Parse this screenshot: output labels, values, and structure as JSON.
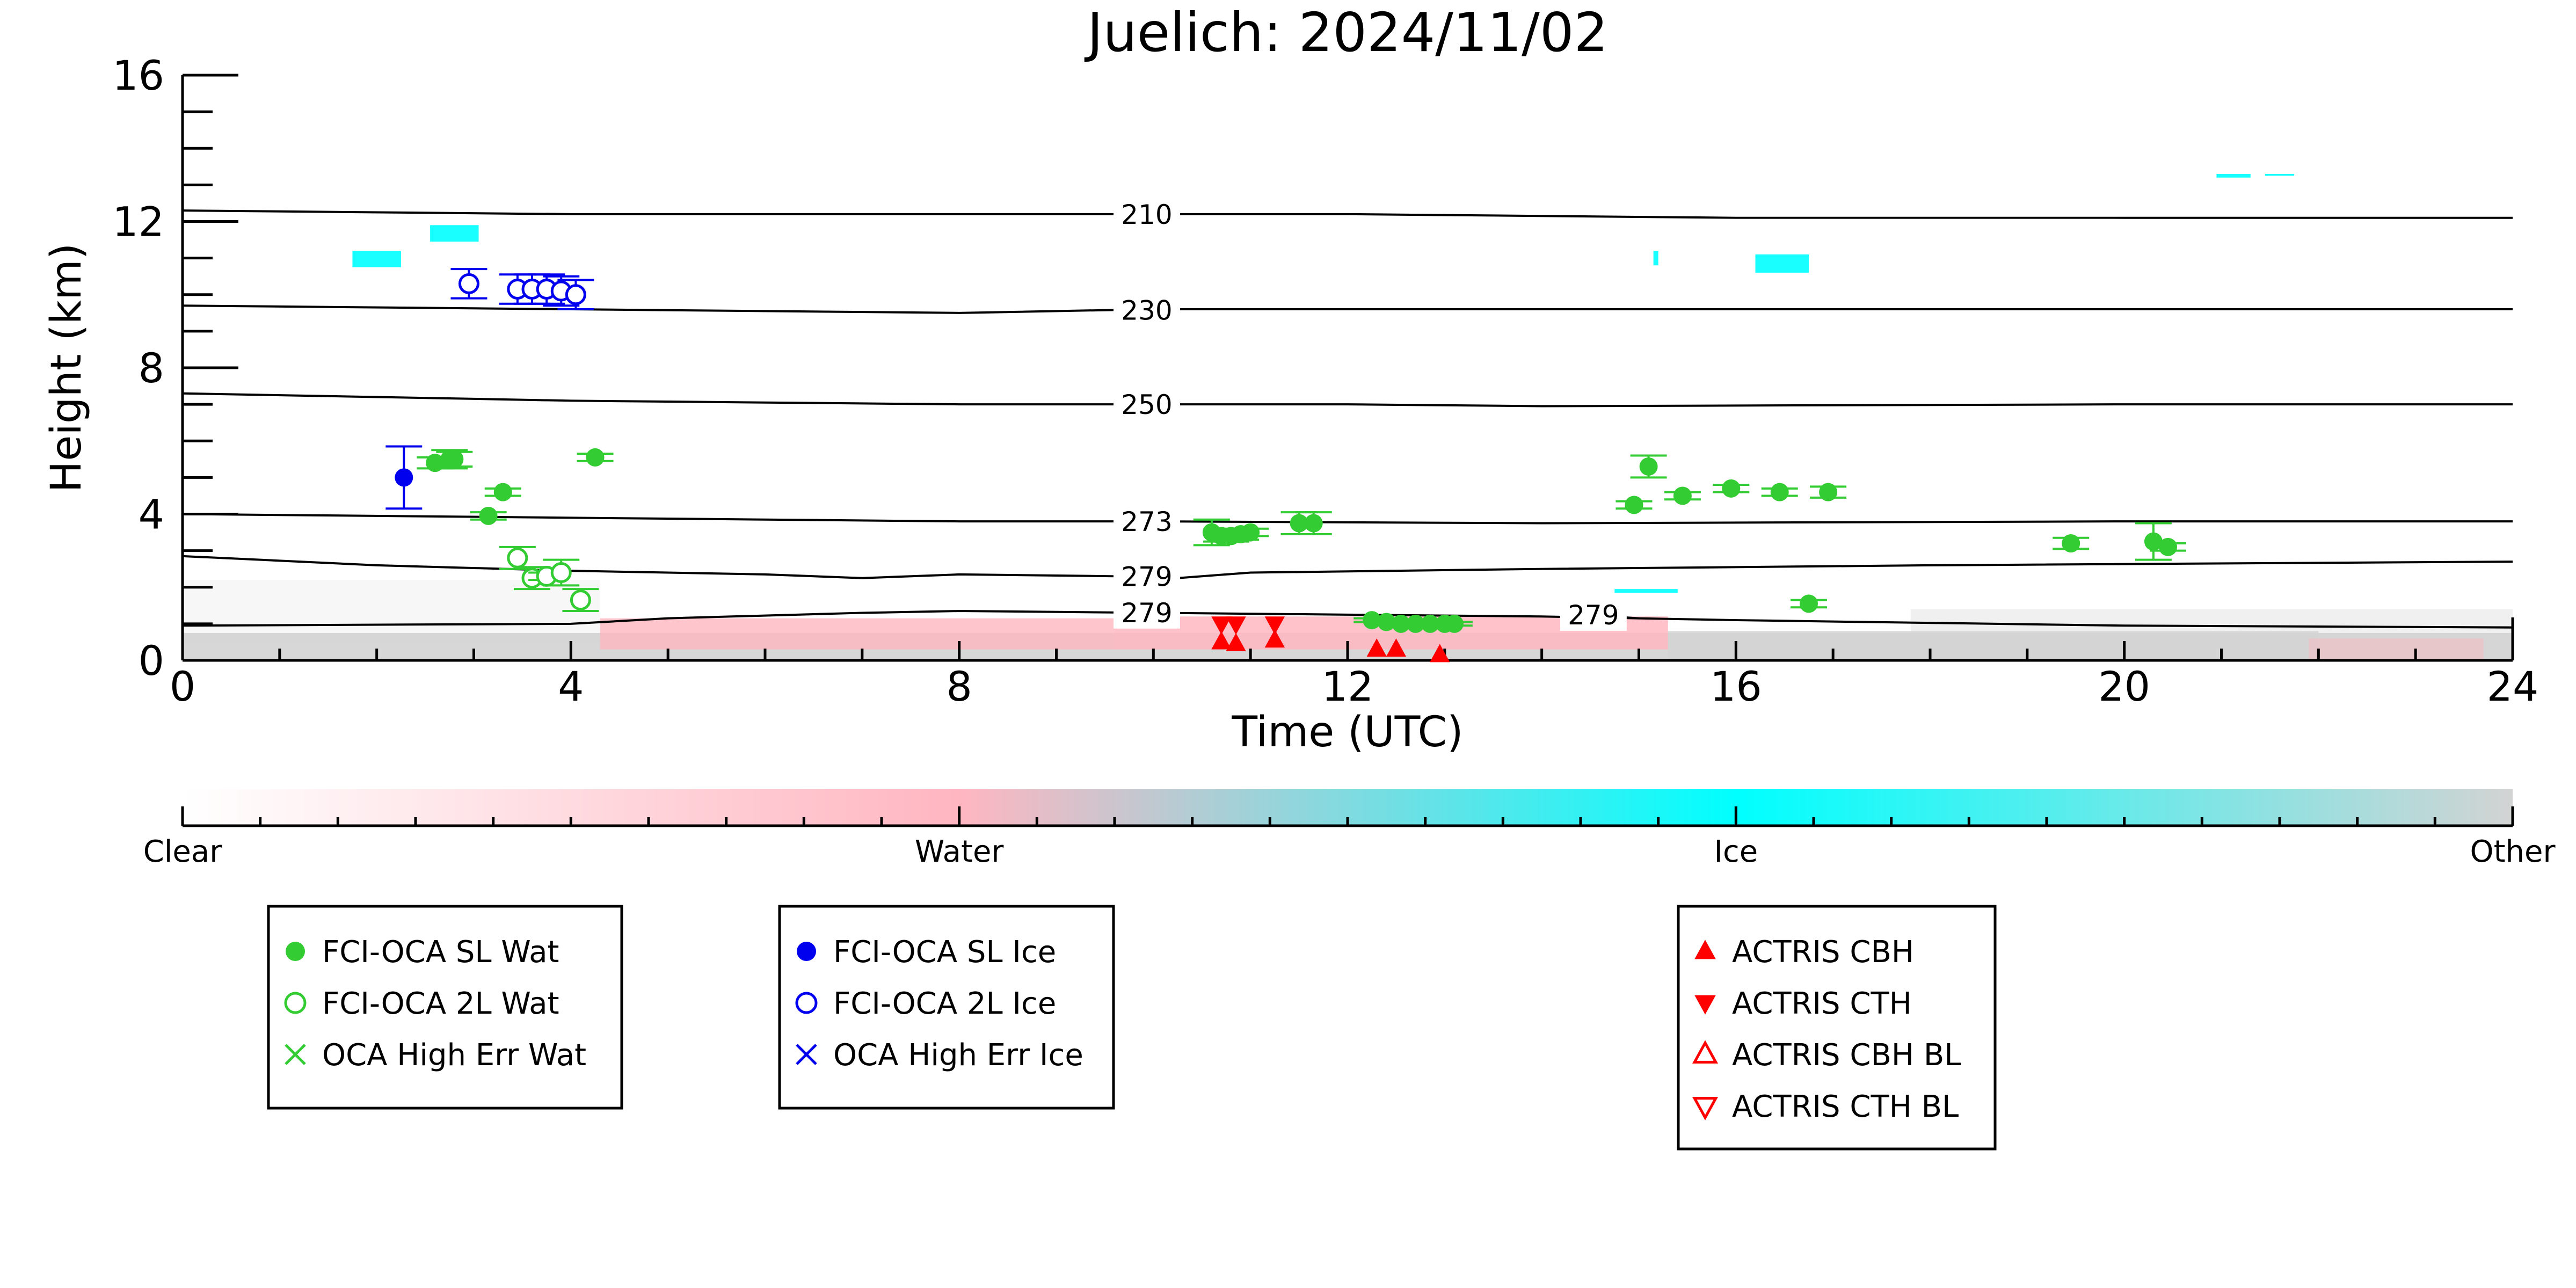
{
  "chart_data": {
    "type": "scatter",
    "title": "Juelich: 2024/11/02",
    "xlabel": "Time (UTC)",
    "ylabel": "Height (km)",
    "xlim": [
      0,
      24
    ],
    "ylim": [
      0,
      16
    ],
    "x_ticks": [
      "0",
      "4",
      "8",
      "12",
      "16",
      "20",
      "24"
    ],
    "y_ticks": [
      "0",
      "4",
      "8",
      "12",
      "16"
    ],
    "grid": false,
    "colorbar": {
      "labels": [
        "Clear",
        "Water",
        "Ice",
        "Other"
      ],
      "colors": [
        "#ffffff",
        "#ffb6c1",
        "#00ffff",
        "#d3d3d3"
      ]
    },
    "temperature_contours": [
      {
        "label": "210",
        "label_x": 9.6,
        "points": [
          [
            0,
            12.3
          ],
          [
            4,
            12.2
          ],
          [
            8,
            12.2
          ],
          [
            12,
            12.2
          ],
          [
            16,
            12.1
          ],
          [
            20,
            12.1
          ],
          [
            24,
            12.1
          ]
        ]
      },
      {
        "label": "230",
        "label_x": 9.6,
        "points": [
          [
            0,
            9.7
          ],
          [
            4,
            9.6
          ],
          [
            8,
            9.5
          ],
          [
            10,
            9.6
          ],
          [
            14,
            9.6
          ],
          [
            18,
            9.6
          ],
          [
            24,
            9.6
          ]
        ]
      },
      {
        "label": "250",
        "label_x": 9.6,
        "points": [
          [
            0,
            7.3
          ],
          [
            4,
            7.1
          ],
          [
            8,
            7.0
          ],
          [
            12,
            7.0
          ],
          [
            14,
            6.95
          ],
          [
            20,
            7.0
          ],
          [
            24,
            7.0
          ]
        ]
      },
      {
        "label": "273",
        "label_x": 9.6,
        "points": [
          [
            0,
            4.0
          ],
          [
            4,
            3.9
          ],
          [
            8,
            3.8
          ],
          [
            10,
            3.8
          ],
          [
            14,
            3.75
          ],
          [
            20,
            3.8
          ],
          [
            24,
            3.8
          ]
        ]
      },
      {
        "label": "279",
        "label_x": 9.6,
        "points": [
          [
            0,
            2.85
          ],
          [
            2,
            2.6
          ],
          [
            4,
            2.45
          ],
          [
            6,
            2.35
          ],
          [
            7,
            2.25
          ],
          [
            8,
            2.35
          ],
          [
            9.6,
            2.3
          ],
          [
            10,
            2.2
          ],
          [
            11,
            2.4
          ],
          [
            14,
            2.5
          ],
          [
            18,
            2.6
          ],
          [
            24,
            2.7
          ]
        ]
      },
      {
        "label": "279",
        "label_x": 9.6,
        "points": [
          [
            0,
            0.95
          ],
          [
            4,
            1.0
          ],
          [
            5,
            1.15
          ],
          [
            7,
            1.3
          ],
          [
            8,
            1.35
          ],
          [
            10,
            1.3
          ],
          [
            12,
            1.25
          ],
          [
            14,
            1.2
          ],
          [
            16,
            1.1
          ],
          [
            20,
            0.95
          ],
          [
            24,
            0.9
          ]
        ]
      },
      {
        "label": "279",
        "label_x": 14.2,
        "points": [
          [
            14.4,
            1.25
          ],
          [
            15,
            1.15
          ]
        ]
      }
    ],
    "series": [
      {
        "name": "FCI-OCA SL Wat",
        "color": "#33cc33",
        "marker": "filled-circle",
        "points": [
          [
            2.6,
            5.4
          ],
          [
            2.75,
            5.5
          ],
          [
            2.8,
            5.5
          ],
          [
            3.15,
            3.95
          ],
          [
            3.3,
            4.6
          ],
          [
            4.25,
            5.55
          ],
          [
            10.6,
            3.5
          ],
          [
            10.7,
            3.4
          ],
          [
            10.8,
            3.4
          ],
          [
            10.9,
            3.45
          ],
          [
            11.0,
            3.5
          ],
          [
            11.5,
            3.75
          ],
          [
            11.65,
            3.75
          ],
          [
            12.25,
            1.1
          ],
          [
            12.4,
            1.05
          ],
          [
            12.55,
            1.0
          ],
          [
            12.7,
            1.0
          ],
          [
            12.85,
            1.0
          ],
          [
            13.0,
            1.0
          ],
          [
            13.1,
            1.0
          ],
          [
            15.1,
            5.3
          ],
          [
            14.95,
            4.25
          ],
          [
            15.45,
            4.5
          ],
          [
            15.95,
            4.7
          ],
          [
            16.45,
            4.6
          ],
          [
            16.95,
            4.6
          ],
          [
            16.75,
            1.55
          ],
          [
            19.45,
            3.2
          ],
          [
            20.3,
            3.25
          ],
          [
            20.45,
            3.1
          ]
        ],
        "yerr": [
          0.15,
          0.25,
          0.2,
          0.1,
          0.1,
          0.1,
          0.35,
          0.15,
          0.15,
          0.15,
          0.1,
          0.3,
          0.3,
          0.05,
          0.05,
          0.05,
          0.05,
          0.05,
          0.05,
          0.05,
          0.3,
          0.1,
          0.1,
          0.1,
          0.1,
          0.15,
          0.1,
          0.15,
          0.5,
          0.1
        ]
      },
      {
        "name": "FCI-OCA 2L Wat",
        "color": "#33cc33",
        "marker": "open-circle",
        "points": [
          [
            3.45,
            2.8
          ],
          [
            3.6,
            2.25
          ],
          [
            3.75,
            2.3
          ],
          [
            3.9,
            2.4
          ],
          [
            4.1,
            1.65
          ]
        ],
        "yerr": [
          0.3,
          0.3,
          0.1,
          0.35,
          0.3
        ]
      },
      {
        "name": "OCA High Err Wat",
        "color": "#33cc33",
        "marker": "x",
        "points": []
      },
      {
        "name": "FCI-OCA SL Ice",
        "color": "#0000ee",
        "marker": "filled-circle",
        "points": [
          [
            2.28,
            5.0
          ]
        ],
        "yerr": [
          0.85
        ]
      },
      {
        "name": "FCI-OCA 2L Ice",
        "color": "#0000ee",
        "marker": "open-circle",
        "points": [
          [
            2.95,
            10.3
          ],
          [
            3.45,
            10.15
          ],
          [
            3.6,
            10.15
          ],
          [
            3.75,
            10.15
          ],
          [
            3.9,
            10.1
          ],
          [
            4.05,
            10.0
          ]
        ],
        "yerr": [
          0.4,
          0.4,
          0.4,
          0.4,
          0.4,
          0.4
        ]
      },
      {
        "name": "OCA High Err Ice",
        "color": "#0000ee",
        "marker": "x",
        "points": []
      },
      {
        "name": "ACTRIS CBH",
        "color": "#ff0000",
        "marker": "triangle-up",
        "points": [
          [
            10.7,
            0.5
          ],
          [
            10.85,
            0.45
          ],
          [
            11.25,
            0.55
          ],
          [
            12.3,
            0.3
          ],
          [
            12.5,
            0.3
          ],
          [
            12.95,
            0.15
          ]
        ]
      },
      {
        "name": "ACTRIS CTH",
        "color": "#ff0000",
        "marker": "triangle-down",
        "points": [
          [
            10.7,
            1.0
          ],
          [
            10.85,
            1.0
          ],
          [
            11.25,
            1.0
          ]
        ]
      },
      {
        "name": "ACTRIS CBH BL",
        "color": "#ff0000",
        "marker": "open-triangle-up",
        "points": []
      },
      {
        "name": "ACTRIS CTH BL",
        "color": "#ff0000",
        "marker": "open-triangle-down",
        "points": []
      }
    ],
    "legends": [
      {
        "items": [
          "FCI-OCA SL Wat",
          "FCI-OCA 2L Wat",
          "OCA High Err Wat"
        ]
      },
      {
        "items": [
          "FCI-OCA SL Ice",
          "FCI-OCA 2L Ice",
          "OCA High Err Ice"
        ]
      },
      {
        "items": [
          "ACTRIS CBH",
          "ACTRIS CTH",
          "ACTRIS CBH BL",
          "ACTRIS CTH BL"
        ]
      }
    ]
  }
}
